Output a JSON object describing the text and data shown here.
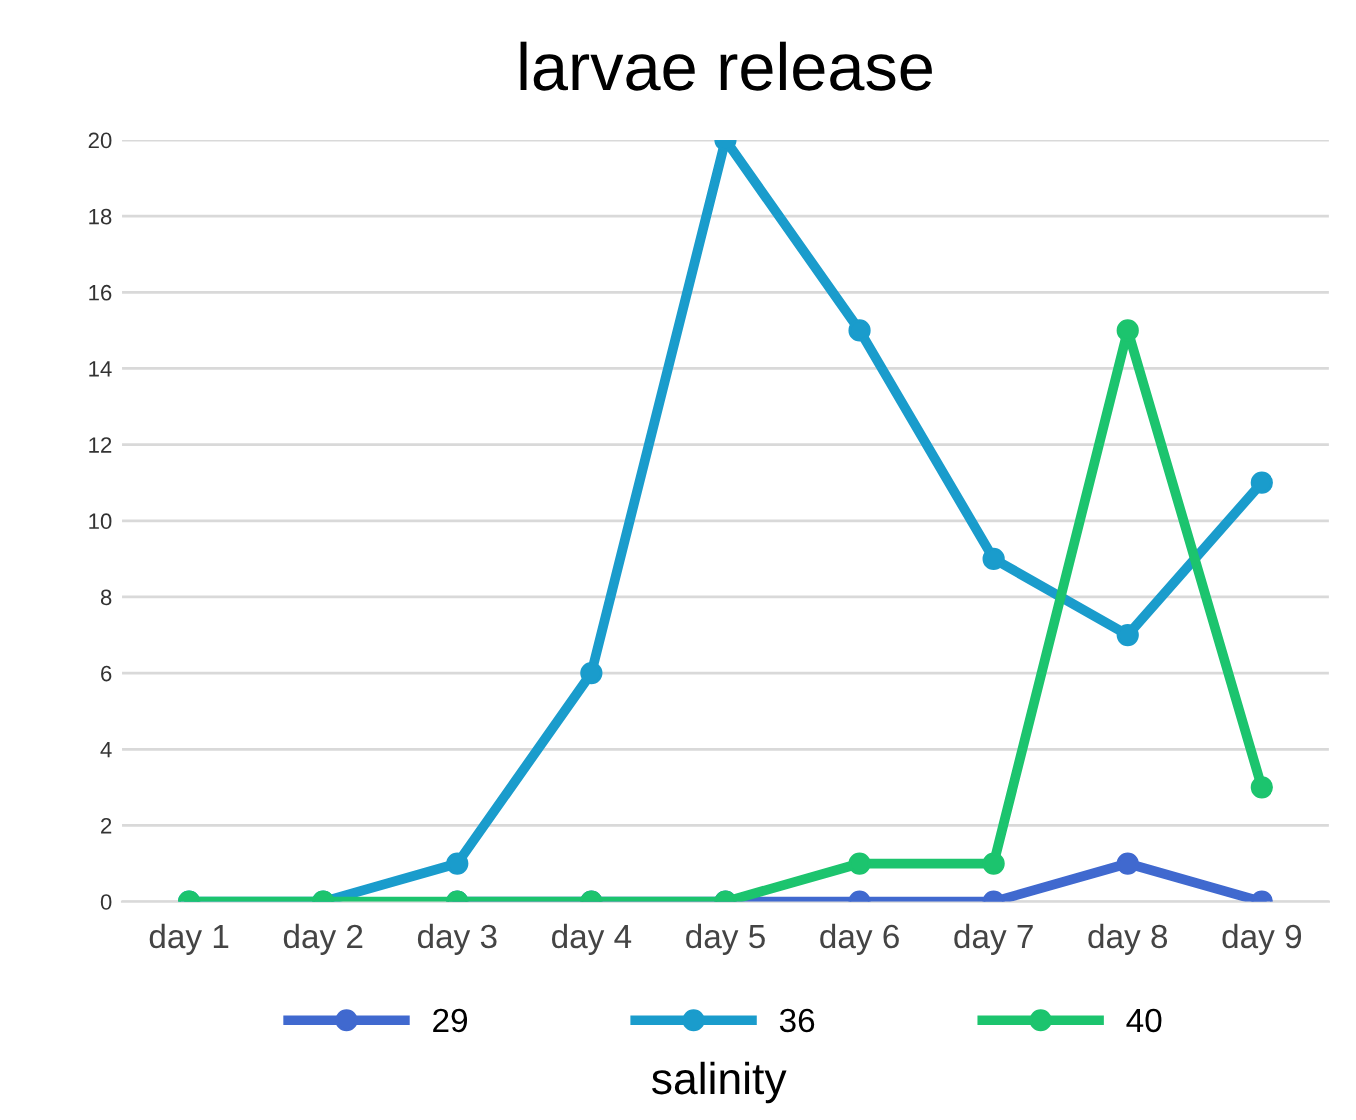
{
  "chart_data": {
    "type": "line",
    "title": "larvae release",
    "xlabel": "salinity",
    "categories": [
      "day 1",
      "day 2",
      "day 3",
      "day 4",
      "day 5",
      "day 6",
      "day 7",
      "day 8",
      "day 9"
    ],
    "series": [
      {
        "name": "29",
        "color": "#4069cf",
        "values": [
          null,
          null,
          0,
          0,
          0,
          0,
          0,
          1,
          0
        ]
      },
      {
        "name": "36",
        "color": "#1a9ccc",
        "values": [
          0,
          0,
          1,
          6,
          20,
          15,
          9,
          7,
          11
        ]
      },
      {
        "name": "40",
        "color": "#1cc46e",
        "values": [
          0,
          0,
          0,
          0,
          0,
          1,
          1,
          15,
          3
        ]
      }
    ],
    "ylim": [
      0,
      20
    ],
    "yticks": [
      0,
      2,
      4,
      6,
      8,
      10,
      12,
      14,
      16,
      18,
      20
    ],
    "grid": "y",
    "legend": "bottom",
    "marker": "circle",
    "line_style": "solid"
  }
}
